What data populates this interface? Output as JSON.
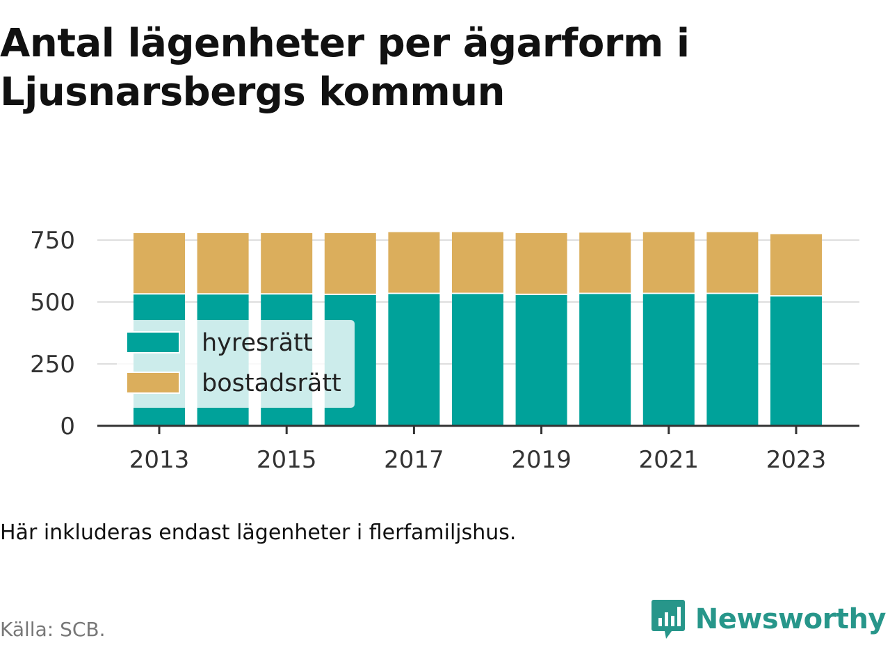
{
  "title": "Antal lägenheter per ägarform i Ljusnarsbergs kommun",
  "note": "Här inkluderas endast lägenheter i flerfamiljshus.",
  "source": "Källa: SCB.",
  "brand": "Newsworthy",
  "colors": {
    "hyresratt": "#00a29a",
    "bostadsratt": "#dbae5c",
    "brand": "#27968a"
  },
  "chart_data": {
    "type": "bar",
    "stacked": true,
    "x": [
      2013,
      2014,
      2015,
      2016,
      2017,
      2018,
      2019,
      2020,
      2021,
      2022,
      2023
    ],
    "x_tick_labels": [
      "2013",
      "2015",
      "2017",
      "2019",
      "2021",
      "2023"
    ],
    "x_tick_values": [
      2013,
      2015,
      2017,
      2019,
      2021,
      2023
    ],
    "series": [
      {
        "name": "hyresrätt",
        "values": [
          530,
          530,
          530,
          528,
          532,
          532,
          528,
          532,
          532,
          532,
          522
        ]
      },
      {
        "name": "bostadsrätt",
        "values": [
          248,
          248,
          248,
          250,
          250,
          250,
          250,
          248,
          250,
          250,
          252
        ]
      }
    ],
    "yticks": [
      0,
      250,
      500,
      750
    ],
    "ylim": [
      0,
      800
    ],
    "grid": "horizontal",
    "legend": "left"
  }
}
